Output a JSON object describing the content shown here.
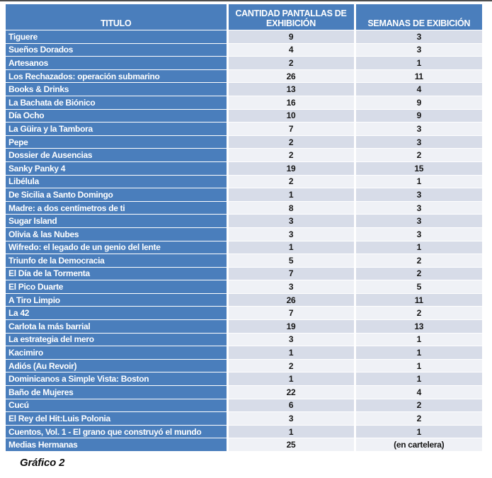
{
  "page": {
    "caption": "Gráfico 2"
  },
  "colors": {
    "header_blue": "#4a7ebc",
    "banded_row_tint": "#d7dce8",
    "light_row": "#eff1f6",
    "text_on_blue": "#ffffff",
    "cell_text": "#161616",
    "top_line_gray": "#4e4e4e"
  },
  "table": {
    "columns": [
      {
        "label": "TITULO"
      },
      {
        "label": "CANTIDAD PANTALLAS DE EXHIBICIÓN"
      },
      {
        "label": "SEMANAS DE EXIBICIÓN"
      }
    ],
    "rows": [
      {
        "titulo": "Tiguere",
        "pantallas": "9",
        "semanas": "3"
      },
      {
        "titulo": "Sueños Dorados",
        "pantallas": "4",
        "semanas": "3"
      },
      {
        "titulo": "Artesanos",
        "pantallas": "2",
        "semanas": "1"
      },
      {
        "titulo": "Los Rechazados: operación submarino",
        "pantallas": "26",
        "semanas": "11"
      },
      {
        "titulo": "Books & Drinks",
        "pantallas": "13",
        "semanas": "4"
      },
      {
        "titulo": "La Bachata de Biónico",
        "pantallas": "16",
        "semanas": "9"
      },
      {
        "titulo": "Día Ocho",
        "pantallas": "10",
        "semanas": "9"
      },
      {
        "titulo": "La Güira y la Tambora",
        "pantallas": "7",
        "semanas": "3"
      },
      {
        "titulo": "Pepe",
        "pantallas": "2",
        "semanas": "3"
      },
      {
        "titulo": "Dossier de Ausencias",
        "pantallas": "2",
        "semanas": "2"
      },
      {
        "titulo": "Sanky Panky 4",
        "pantallas": "19",
        "semanas": "15"
      },
      {
        "titulo": "Libélula",
        "pantallas": "2",
        "semanas": "1"
      },
      {
        "titulo": "De Sicilia a Santo Domingo",
        "pantallas": "1",
        "semanas": "3"
      },
      {
        "titulo": "Madre: a dos centímetros de ti",
        "pantallas": "8",
        "semanas": "3"
      },
      {
        "titulo": "Sugar Island",
        "pantallas": "3",
        "semanas": "3"
      },
      {
        "titulo": "Olivia & las Nubes",
        "pantallas": "3",
        "semanas": "3"
      },
      {
        "titulo": "Wifredo: el legado de un genio del lente",
        "pantallas": "1",
        "semanas": "1"
      },
      {
        "titulo": "Triunfo de la Democracia",
        "pantallas": "5",
        "semanas": "2"
      },
      {
        "titulo": "El Día de la Tormenta",
        "pantallas": "7",
        "semanas": "2"
      },
      {
        "titulo": "El Pico Duarte",
        "pantallas": "3",
        "semanas": "5"
      },
      {
        "titulo": "A Tiro Limpio",
        "pantallas": "26",
        "semanas": "11"
      },
      {
        "titulo": "La 42",
        "pantallas": "7",
        "semanas": "2"
      },
      {
        "titulo": "Carlota la más barrial",
        "pantallas": "19",
        "semanas": "13"
      },
      {
        "titulo": "La estrategia del mero",
        "pantallas": "3",
        "semanas": "1"
      },
      {
        "titulo": "Kacimiro",
        "pantallas": "1",
        "semanas": "1"
      },
      {
        "titulo": "Adiós (Au Revoir)",
        "pantallas": "2",
        "semanas": "1"
      },
      {
        "titulo": "Dominicanos a Simple Vista: Boston",
        "pantallas": "1",
        "semanas": "1"
      },
      {
        "titulo": "Baño de Mujeres",
        "pantallas": "22",
        "semanas": "4"
      },
      {
        "titulo": "Cucú",
        "pantallas": "6",
        "semanas": "2"
      },
      {
        "titulo": "El Rey del Hit:Luis Polonia",
        "pantallas": "3",
        "semanas": "2"
      },
      {
        "titulo": "Cuentos, Vol. 1 - El grano que construyó el mundo",
        "pantallas": "1",
        "semanas": "1"
      },
      {
        "titulo": "Medias Hermanas",
        "pantallas": "25",
        "semanas": "(en cartelera)"
      }
    ]
  }
}
